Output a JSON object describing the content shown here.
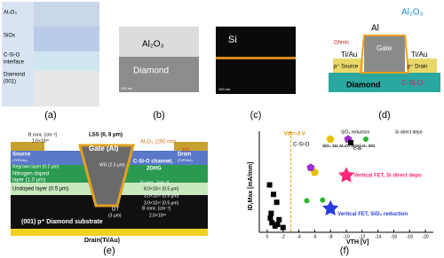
{
  "panels": {
    "a": {
      "label": "(a)",
      "layers": [
        "Al₂O₃",
        "SiOx",
        "C-Si-O",
        "interface",
        "Diamond",
        "(001)"
      ]
    },
    "b": {
      "label": "(b)",
      "top": "Al₂O₃",
      "bottom": "Diamond",
      "scale": "100 nm"
    },
    "c": {
      "label": "(c)",
      "element": "Si",
      "scale": "100 nm"
    },
    "d": {
      "label": "(d)",
      "gate_metal": "Al",
      "gate": "Gate",
      "oxide": "Al₂O₃",
      "ohmic": "Ohmic",
      "contact_left": "Ti/Au",
      "contact_right": "Ti/Au",
      "source": "p⁺ Source",
      "drain": "p⁺ Drain",
      "substrate": "Diamond",
      "interface": "C-Si-O"
    },
    "e": {
      "label": "(e)",
      "lss": "LSS (6, 8 μm)",
      "gate": "Gate (Al)",
      "oxide": "Al₂O₃ (200 nm)",
      "tic": "TiC",
      "source": "Source",
      "source_metal": "(Ti/Pt/Au)",
      "drain": "Drain",
      "drain_metal": "(Ti/Pt/Au)",
      "wg": "WG (2.5 μm)",
      "regrown": "Regrown layer (0.2 μm)",
      "nitrogen": [
        "Nitrogen doped",
        "layer (1.0 μm)"
      ],
      "undoped": "Undoped layer (0.5 μm)",
      "channel": [
        "C-Si-O channel,",
        "2DHG"
      ],
      "dt": [
        "DT",
        "(3 μm)"
      ],
      "b_conc_top": "B conc. [cm⁻³]",
      "b_top_value": "1.0×10²⁰",
      "n_conc": "N conc. [cm⁻³]",
      "n_values": [
        "8.0×10¹⁶ (0.5 μm)",
        "3.0×10¹⁶ (0.5 μm)",
        "3.0×10¹⁶ (0.5 μm)"
      ],
      "b_conc_bottom": "B conc. [cm⁻³]",
      "b_bottom_value": "2.0×10²⁰",
      "substrate": "(001) p⁺ Diamond substrate",
      "back_drain": "Drain(Ti/Au)"
    },
    "f": {
      "label": "(f)",
      "x_label": "VTH [V]",
      "y_label": "ID,Max [mA/mm]",
      "xlim": [
        1,
        -21
      ],
      "xticks": [
        0,
        -2,
        -4,
        -6,
        -8,
        -10,
        -12,
        -14,
        -16,
        -18,
        -20
      ],
      "ylim": [
        0,
        320
      ],
      "vth_line": {
        "value": -3,
        "label": "Vth=-3 V"
      },
      "legend_groups": [
        "SiO₂ reduction",
        "Si direct depo"
      ],
      "reference_label": "C-Si-O",
      "series": [
        {
          "name": "C-Si",
          "color": "#000000",
          "marker": "square",
          "x": [
            -0.3,
            -0.8,
            -1.2,
            -0.5,
            -1.5,
            -0.6,
            -1,
            -2,
            -0.4,
            -1.3
          ],
          "y": [
            150,
            120,
            95,
            60,
            40,
            30,
            20,
            15,
            45,
            25
          ]
        },
        {
          "name": "SiO₂ 111",
          "color": "#e6c000",
          "marker": "pentagon",
          "x": [
            -6
          ],
          "y": [
            190
          ]
        },
        {
          "name": "Al₂O₃ 111",
          "color": "#9b30d0",
          "marker": "pentagon",
          "x": [
            -5.5
          ],
          "y": [
            205
          ]
        },
        {
          "name": "Al₂O₃ 001",
          "color": "#2bb52b",
          "marker": "circle",
          "x": [
            -5,
            -7
          ],
          "y": [
            100,
            102
          ]
        },
        {
          "name": "Vertical FET, Si direct depo",
          "color": "#ff2a7a",
          "marker": "star",
          "x": [
            -10
          ],
          "y": [
            180
          ]
        },
        {
          "name": "Vertical FET, SiO₂ reduction",
          "color": "#2a3ce0",
          "marker": "star",
          "x": [
            -8
          ],
          "y": [
            75
          ]
        }
      ]
    }
  }
}
